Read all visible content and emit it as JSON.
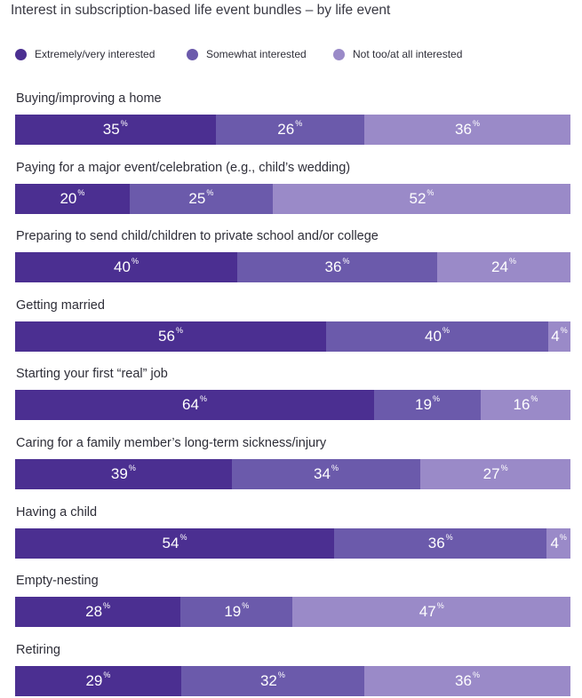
{
  "chart_data": {
    "type": "bar",
    "title": "Interest in subscription-based life event bundles – by life event",
    "orientation": "horizontal-stacked",
    "legend_placement": "top",
    "unit_suffix": "%",
    "colors": {
      "extremely": "#4b2f91",
      "somewhat": "#6b5aab",
      "not": "#9a8ac8"
    },
    "series": [
      {
        "name": "Extremely/very interested",
        "key": "extremely"
      },
      {
        "name": "Somewhat interested",
        "key": "somewhat"
      },
      {
        "name": "Not too/at all interested",
        "key": "not"
      }
    ],
    "categories": [
      "Buying/improving a home",
      "Paying for a major event/celebration (e.g., child’s wedding)",
      "Preparing to send child/children to private school and/or college",
      "Getting married",
      "Starting your first “real” job",
      "Caring for a family member’s long-term sickness/injury",
      "Having a child",
      "Empty-nesting",
      "Retiring"
    ],
    "values": [
      [
        35,
        26,
        36
      ],
      [
        20,
        25,
        52
      ],
      [
        40,
        36,
        24
      ],
      [
        56,
        40,
        4
      ],
      [
        64,
        19,
        16
      ],
      [
        39,
        34,
        27
      ],
      [
        54,
        36,
        4
      ],
      [
        28,
        19,
        47
      ],
      [
        29,
        32,
        36
      ]
    ]
  }
}
